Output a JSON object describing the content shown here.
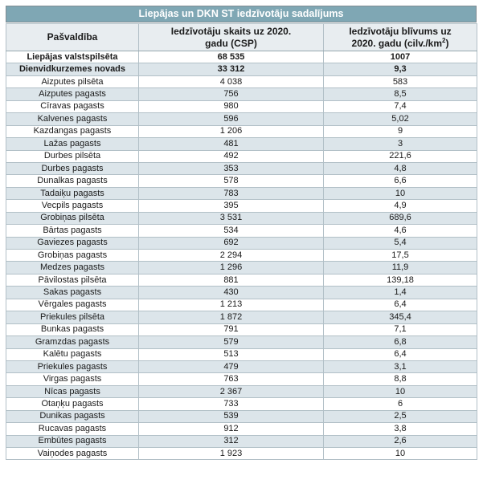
{
  "title": "Liepājas un DKN ST iedzīvotāju sadalījums",
  "colors": {
    "title_bg": "#7FA7B4",
    "header_bg": "#E8EDF0",
    "stripe_bg": "#DCE5EA",
    "border_outer": "#7F8C92",
    "border_inner": "#B2C0C7"
  },
  "table": {
    "headers": {
      "col1": "Pašvaldība",
      "col2_line1": "Iedzīvotāju skaits uz 2020.",
      "col2_line2": "gadu (CSP)",
      "col3_line1": "Iedzīvotāju blīvums uz",
      "col3_line2_prefix": "2020. gadu (cilv./km",
      "col3_sup": "2",
      "col3_line2_suffix": ")"
    },
    "rows": [
      {
        "name": "Liepājas valstspilsēta",
        "population": "68 535",
        "density": "1007",
        "bold": true
      },
      {
        "name": "Dienvidkurzemes novads",
        "population": "33 312",
        "density": "9,3",
        "bold": true
      },
      {
        "name": "Aizputes pilsēta",
        "population": "4 038",
        "density": "583",
        "bold": false
      },
      {
        "name": "Aizputes pagasts",
        "population": "756",
        "density": "8,5",
        "bold": false
      },
      {
        "name": "Cīravas pagasts",
        "population": "980",
        "density": "7,4",
        "bold": false
      },
      {
        "name": "Kalvenes pagasts",
        "population": "596",
        "density": "5,02",
        "bold": false
      },
      {
        "name": "Kazdangas pagasts",
        "population": "1 206",
        "density": "9",
        "bold": false
      },
      {
        "name": "Lažas pagasts",
        "population": "481",
        "density": "3",
        "bold": false
      },
      {
        "name": "Durbes pilsēta",
        "population": "492",
        "density": "221,6",
        "bold": false
      },
      {
        "name": "Durbes pagasts",
        "population": "353",
        "density": "4,8",
        "bold": false
      },
      {
        "name": "Dunalkas pagasts",
        "population": "578",
        "density": "6,6",
        "bold": false
      },
      {
        "name": "Tadaiķu pagasts",
        "population": "783",
        "density": "10",
        "bold": false
      },
      {
        "name": "Vecpils pagasts",
        "population": "395",
        "density": "4,9",
        "bold": false
      },
      {
        "name": "Grobiņas pilsēta",
        "population": "3 531",
        "density": "689,6",
        "bold": false
      },
      {
        "name": "Bārtas pagasts",
        "population": "534",
        "density": "4,6",
        "bold": false
      },
      {
        "name": "Gaviezes pagasts",
        "population": "692",
        "density": "5,4",
        "bold": false
      },
      {
        "name": "Grobiņas pagasts",
        "population": "2 294",
        "density": "17,5",
        "bold": false
      },
      {
        "name": "Medzes pagasts",
        "population": "1 296",
        "density": "11,9",
        "bold": false
      },
      {
        "name": "Pāvilostas pilsēta",
        "population": "881",
        "density": "139,18",
        "bold": false
      },
      {
        "name": "Sakas pagasts",
        "population": "430",
        "density": "1,4",
        "bold": false
      },
      {
        "name": "Vērgales pagasts",
        "population": "1 213",
        "density": "6,4",
        "bold": false
      },
      {
        "name": "Priekules pilsēta",
        "population": "1 872",
        "density": "345,4",
        "bold": false
      },
      {
        "name": "Bunkas pagasts",
        "population": "791",
        "density": "7,1",
        "bold": false
      },
      {
        "name": "Gramzdas pagasts",
        "population": "579",
        "density": "6,8",
        "bold": false
      },
      {
        "name": "Kalētu pagasts",
        "population": "513",
        "density": "6,4",
        "bold": false
      },
      {
        "name": "Priekules pagasts",
        "population": "479",
        "density": "3,1",
        "bold": false
      },
      {
        "name": "Virgas pagasts",
        "population": "763",
        "density": "8,8",
        "bold": false
      },
      {
        "name": "Nīcas pagasts",
        "population": "2 367",
        "density": "10",
        "bold": false
      },
      {
        "name": "Otaņķu pagasts",
        "population": "733",
        "density": "6",
        "bold": false
      },
      {
        "name": "Dunikas pagasts",
        "population": "539",
        "density": "2,5",
        "bold": false
      },
      {
        "name": "Rucavas pagasts",
        "population": "912",
        "density": "3,8",
        "bold": false
      },
      {
        "name": "Embūtes pagasts",
        "population": "312",
        "density": "2,6",
        "bold": false
      },
      {
        "name": "Vaiņodes pagasts",
        "population": "1 923",
        "density": "10",
        "bold": false
      }
    ]
  }
}
